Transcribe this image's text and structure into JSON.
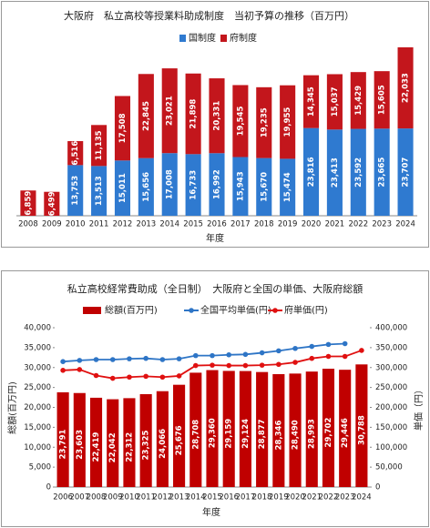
{
  "chart_data": [
    {
      "type": "stacked_bar",
      "title": "大阪府　私立高校等授業料助成制度　当初予算の推移（百万円）",
      "x_label": "年度",
      "categories": [
        "2008",
        "2009",
        "2010",
        "2011",
        "2012",
        "2013",
        "2014",
        "2015",
        "2016",
        "2017",
        "2018",
        "2019",
        "2020",
        "2021",
        "2022",
        "2023",
        "2024"
      ],
      "series": [
        {
          "name": "国制度",
          "color": "#2f7ad0",
          "values": [
            null,
            null,
            13753,
            13513,
            15011,
            15656,
            17008,
            16733,
            16992,
            15943,
            15670,
            15474,
            23816,
            23413,
            23592,
            23665,
            23707
          ],
          "value_labels": [
            null,
            null,
            "13,753",
            "13,513",
            "15,011",
            "15,656",
            "17,008",
            "16,733",
            "16,992",
            "15,943",
            "15,670",
            "15,474",
            "23,816",
            "23,413",
            "23,592",
            "23,665",
            "23,707"
          ]
        },
        {
          "name": "府制度",
          "color": "#c3161c",
          "values": [
            6859,
            6499,
            6516,
            11135,
            17508,
            22845,
            23021,
            21898,
            20331,
            19545,
            19235,
            19955,
            14345,
            15037,
            15429,
            15605,
            22033
          ],
          "value_labels": [
            "6,859",
            "6,499",
            "6,516",
            "11,135",
            "17,508",
            "22,845",
            "23,021",
            "21,898",
            "20,331",
            "19,545",
            "19,235",
            "19,955",
            "14,345",
            "15,037",
            "15,429",
            "15,605",
            "22,033"
          ]
        }
      ]
    },
    {
      "type": "bar_line",
      "title": "私立高校経常費助成（全日制）　大阪府と全国の単価、大阪府総額",
      "x_label": "年度",
      "y_label": "総額(百万円)",
      "y2_label": "単価（円）",
      "categories": [
        "2006",
        "2007",
        "2008",
        "2009",
        "2010",
        "2011",
        "2012",
        "2013",
        "2014",
        "2015",
        "2016",
        "2017",
        "2018",
        "2019",
        "2020",
        "2021",
        "2022",
        "2023",
        "2024"
      ],
      "ylim": [
        0,
        40000
      ],
      "yticks": [
        0,
        {
          "value": 5000,
          "label": "5,000"
        },
        {
          "value": 10000,
          "label": "10,000"
        },
        {
          "value": 15000,
          "label": "15,000"
        },
        {
          "value": 20000,
          "label": "20,000"
        },
        {
          "value": 25000,
          "label": "25,000"
        },
        {
          "value": 30000,
          "label": "30,000"
        },
        {
          "value": 35000,
          "label": "35,000"
        },
        {
          "value": 40000,
          "label": "40,000"
        }
      ],
      "y2lim": [
        0,
        400000
      ],
      "y2ticks": [
        0,
        {
          "value": 50000,
          "label": "50,000"
        },
        {
          "value": 100000,
          "label": "100,000"
        },
        {
          "value": 150000,
          "label": "150,000"
        },
        {
          "value": 200000,
          "label": "200,000"
        },
        {
          "value": 250000,
          "label": "250,000"
        },
        {
          "value": 300000,
          "label": "300,000"
        },
        {
          "value": 350000,
          "label": "350,000"
        },
        {
          "value": 400000,
          "label": "400,000"
        }
      ],
      "series": [
        {
          "name": "総額(百万円)",
          "color": "#c00000",
          "values": [
            23791,
            23603,
            22419,
            22042,
            22312,
            23325,
            24066,
            25676,
            28708,
            29360,
            29159,
            29124,
            28877,
            28346,
            28490,
            28993,
            29702,
            29446,
            30788
          ],
          "value_labels": [
            "23,791",
            "23,603",
            "22,419",
            "22,042",
            "22,312",
            "23,325",
            "24,066",
            "25,676",
            "28,708",
            "29,360",
            "29,159",
            "29,124",
            "28,877",
            "28,346",
            "28,490",
            "28,993",
            "29,702",
            "29,446",
            "30,788"
          ]
        },
        {
          "name": "全国平均単価(円)",
          "color": "#2e75c6",
          "axis": "y2",
          "values": [
            315000,
            318000,
            320000,
            320000,
            322000,
            323000,
            320000,
            322000,
            330000,
            330000,
            332000,
            333000,
            337000,
            342000,
            348000,
            353000,
            358000,
            360000,
            null
          ]
        },
        {
          "name": "府単価(円)",
          "color": "#e01010",
          "axis": "y2",
          "values": [
            293000,
            295000,
            280000,
            273000,
            276000,
            278000,
            276000,
            279000,
            305000,
            306000,
            305000,
            305000,
            306000,
            308000,
            313000,
            323000,
            328000,
            328000,
            343000
          ]
        }
      ]
    }
  ]
}
